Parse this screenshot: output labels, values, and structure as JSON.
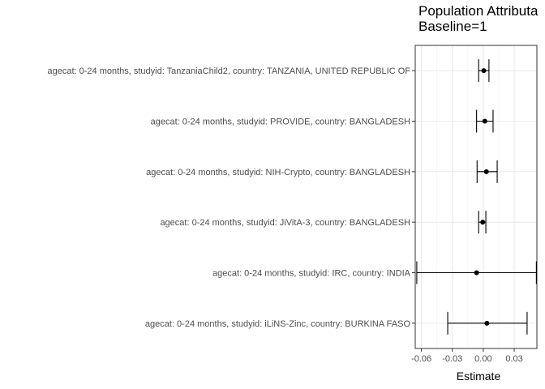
{
  "chart_data": {
    "type": "forest",
    "title": "Population Attributa",
    "subtitle": "Baseline=1",
    "xlabel": "Estimate",
    "ylabel": "",
    "xlim": [
      -0.066,
      0.052
    ],
    "xticks": [
      -0.06,
      -0.03,
      0.0,
      0.03
    ],
    "xtick_labels": [
      "-0.06",
      "-0.03",
      "0.00",
      "0.03"
    ],
    "grid": true,
    "rows": [
      {
        "label": "agecat: 0-24 months, studyid: TanzaniaChild2, country: TANZANIA, UNITED REPUBLIC OF",
        "estimate": 0.0005,
        "lower": -0.0045,
        "upper": 0.0055
      },
      {
        "label": "agecat: 0-24 months, studyid: PROVIDE, country: BANGLADESH",
        "estimate": 0.0015,
        "lower": -0.0065,
        "upper": 0.0095
      },
      {
        "label": "agecat: 0-24 months, studyid: NIH-Crypto, country: BANGLADESH",
        "estimate": 0.003,
        "lower": -0.006,
        "upper": 0.0135
      },
      {
        "label": "agecat: 0-24 months, studyid: JiVitA-3, country: BANGLADESH",
        "estimate": -0.0005,
        "lower": -0.0045,
        "upper": 0.0025
      },
      {
        "label": "agecat: 0-24 months, studyid: IRC, country: INDIA",
        "estimate": -0.0065,
        "lower": -0.0645,
        "upper": 0.0515
      },
      {
        "label": "agecat: 0-24 months, studyid: iLiNS-Zinc, country: BURKINA FASO",
        "estimate": 0.0035,
        "lower": -0.0345,
        "upper": 0.0425
      }
    ]
  }
}
